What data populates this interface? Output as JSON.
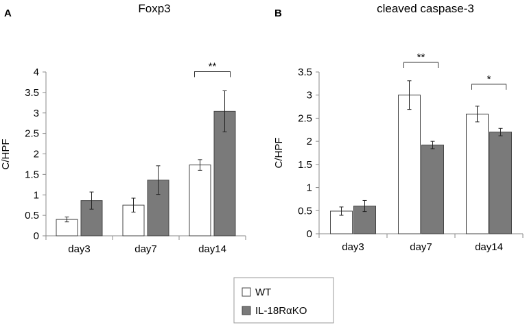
{
  "legend": {
    "entries": [
      {
        "label": "WT",
        "color": "#ffffff"
      },
      {
        "label": "IL-18RαKO",
        "color": "#7a7a7a"
      }
    ]
  },
  "colors": {
    "axis": "#8a8a8a",
    "bar_edge": "#444444",
    "wt": "#ffffff",
    "ko": "#7a7a7a"
  },
  "chart_data": [
    {
      "type": "bar",
      "panel": "A",
      "title": "Foxp3",
      "xlabel": "",
      "ylabel": "C/HPF",
      "ylim": [
        0,
        4
      ],
      "yticks": [
        "0",
        "0.5",
        "1",
        "1.5",
        "2",
        "2.5",
        "3",
        "3.5",
        "4"
      ],
      "categories": [
        "day3",
        "day7",
        "day14"
      ],
      "series": [
        {
          "name": "WT",
          "values": [
            0.4,
            0.75,
            1.73
          ],
          "errors": [
            0.06,
            0.17,
            0.13
          ]
        },
        {
          "name": "IL-18RαKO",
          "values": [
            0.86,
            1.36,
            3.04
          ],
          "errors": [
            0.21,
            0.35,
            0.5
          ]
        }
      ],
      "significance": [
        {
          "category": "day14",
          "label": "**"
        }
      ]
    },
    {
      "type": "bar",
      "panel": "B",
      "title": "cleaved caspase-3",
      "xlabel": "",
      "ylabel": "C/HPF",
      "ylim": [
        0,
        3.5
      ],
      "yticks": [
        "0",
        "0.5",
        "1",
        "1.5",
        "2",
        "2.5",
        "3",
        "3.5"
      ],
      "categories": [
        "day3",
        "day7",
        "day14"
      ],
      "series": [
        {
          "name": "WT",
          "values": [
            0.49,
            3.0,
            2.59
          ],
          "errors": [
            0.09,
            0.31,
            0.17
          ]
        },
        {
          "name": "IL-18RαKO",
          "values": [
            0.6,
            1.92,
            2.2
          ],
          "errors": [
            0.12,
            0.08,
            0.08
          ]
        }
      ],
      "significance": [
        {
          "category": "day7",
          "label": "**"
        },
        {
          "category": "day14",
          "label": "*"
        }
      ]
    }
  ]
}
